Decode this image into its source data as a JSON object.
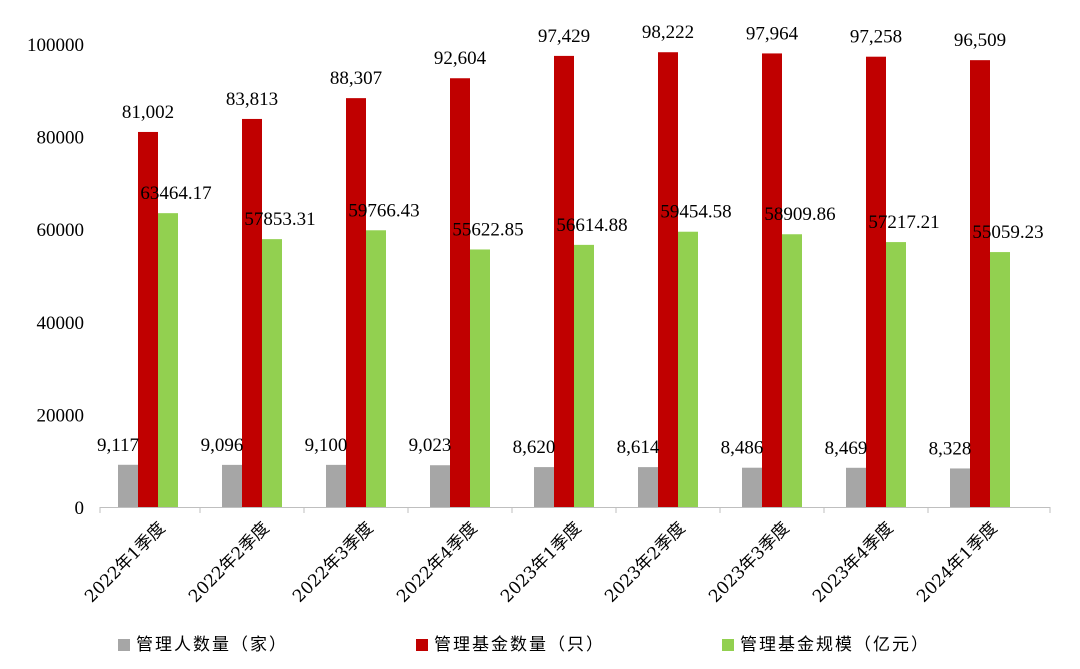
{
  "chart_data": {
    "type": "bar",
    "categories": [
      "2022年1季度",
      "2022年2季度",
      "2022年3季度",
      "2022年4季度",
      "2023年1季度",
      "2023年2季度",
      "2023年3季度",
      "2023年4季度",
      "2024年1季度"
    ],
    "series": [
      {
        "name": "管理人数量（家）",
        "color": "#a6a6a6",
        "values": [
          9117,
          9096,
          9100,
          9023,
          8620,
          8614,
          8486,
          8469,
          8328
        ],
        "labels": [
          "9,117",
          "9,096",
          "9,100",
          "9,023",
          "8,620",
          "8,614",
          "8,486",
          "8,469",
          "8,328"
        ]
      },
      {
        "name": "管理基金数量（只）",
        "color": "#c00000",
        "values": [
          81002,
          83813,
          88307,
          92604,
          97429,
          98222,
          97964,
          97258,
          96509
        ],
        "labels": [
          "81,002",
          "83,813",
          "88,307",
          "92,604",
          "97,429",
          "98,222",
          "97,964",
          "97,258",
          "96,509"
        ]
      },
      {
        "name": "管理基金规模（亿元）",
        "color": "#92d050",
        "values": [
          63464.17,
          57853.31,
          59766.43,
          55622.85,
          56614.88,
          59454.58,
          58909.86,
          57217.21,
          55059.23
        ],
        "labels": [
          "63464.17",
          "57853.31",
          "59766.43",
          "55622.85",
          "56614.88",
          "59454.58",
          "58909.86",
          "57217.21",
          "55059.23"
        ]
      }
    ],
    "y_ticks": [
      "0",
      "20000",
      "40000",
      "60000",
      "80000",
      "100000"
    ],
    "ylim": [
      0,
      100000
    ],
    "grid": false,
    "legend_position": "bottom"
  }
}
